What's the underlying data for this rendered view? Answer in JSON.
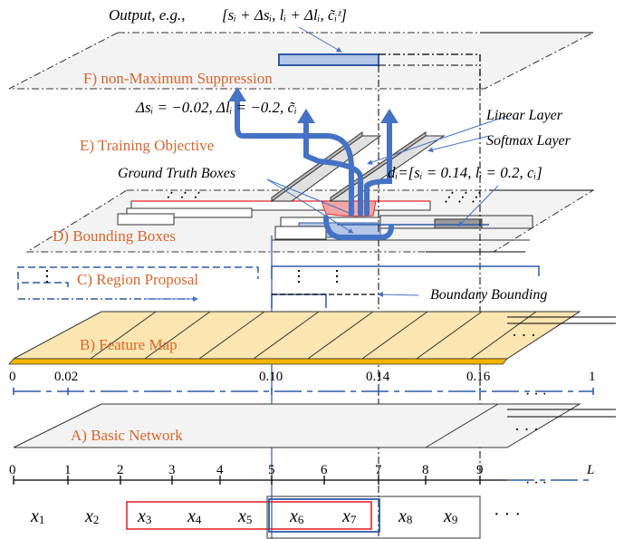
{
  "title": {
    "output_label": "Output, e.g.,",
    "output_formula": "[sᵢ + Δsᵢ,  lᵢ + Δlᵢ,  c̃ᵢᶻ]"
  },
  "stages": {
    "f": "F) non-Maximum Suppression",
    "e": "E) Training Objective",
    "d": "D) Bounding Boxes",
    "c": "C) Region Proposal",
    "b": "B) Feature Map",
    "a": "A) Basic Network"
  },
  "annotations": {
    "offsets": "Δsᵢ = −0.02,  Δlᵢ = −0.2, c̃ᵢ",
    "linear_layer": "Linear Layer",
    "softmax_layer": "Softmax Layer",
    "ground_truth": "Ground Truth Boxes",
    "d_formula": "dᵢ=[sᵢ = 0.14,  lᵢ = 0.2, cᵢ]",
    "boundary_bounding": "Boundary Bounding"
  },
  "feature_axis": {
    "ticks": [
      "0",
      "0.02",
      "0.10",
      "0.14",
      "0.16",
      "1"
    ],
    "ellipsis": "· · ·"
  },
  "position_axis": {
    "ticks": [
      "0",
      "1",
      "2",
      "3",
      "4",
      "5",
      "6",
      "7",
      "8",
      "9",
      "L"
    ],
    "ellipsis": "· · ·"
  },
  "tokens": {
    "items": [
      "x1",
      "x2",
      "x3",
      "x4",
      "x5",
      "x6",
      "x7",
      "x8",
      "x9"
    ],
    "ellipsis": "· · ·"
  },
  "colors": {
    "stage_text": "#d9652b",
    "arrow_blue": "#4472c4",
    "dark_blue": "#2e5aa8",
    "red_box": "#e8252b",
    "feature_map": "#fbe5b0",
    "plane_fill": "#f3f3f3"
  }
}
